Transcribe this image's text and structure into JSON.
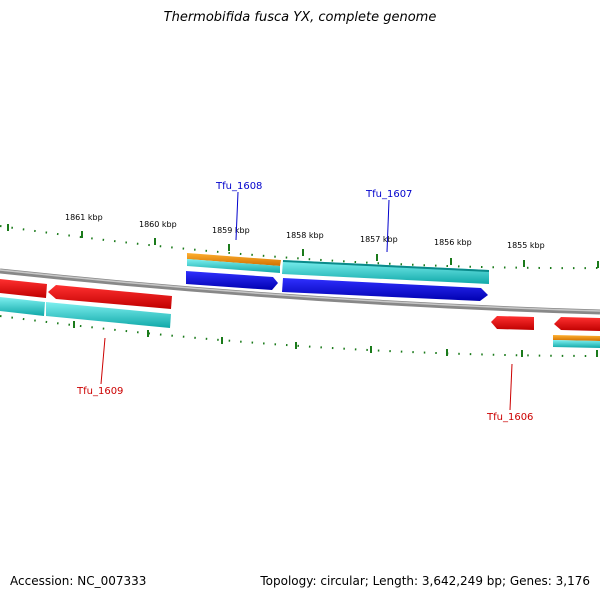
{
  "header": {
    "title": "Thermobifida fusca YX, complete genome"
  },
  "footer": {
    "accession": "Accession: NC_007333",
    "summary": "Topology: circular; Length: 3,642,249 bp; Genes: 3,176"
  },
  "scale_labels": [
    "1861 kbp",
    "1860 kbp",
    "1859 kbp",
    "1858 kbp",
    "1857 kbp",
    "1856 kbp",
    "1855 kbp"
  ],
  "genes": [
    {
      "name": "Tfu_1608",
      "color": "#0000cc"
    },
    {
      "name": "Tfu_1607",
      "color": "#0000cc"
    },
    {
      "name": "Tfu_1609",
      "color": "#cc0000"
    },
    {
      "name": "Tfu_1606",
      "color": "#cc0000"
    }
  ],
  "colors": {
    "forward_cds": "#0000ee",
    "reverse_cds": "#ee0000",
    "rna_orange": "#f08c00",
    "rna_cyan": "#20c8c8",
    "backbone": "#888888",
    "ticks": "#1a7a1a"
  }
}
